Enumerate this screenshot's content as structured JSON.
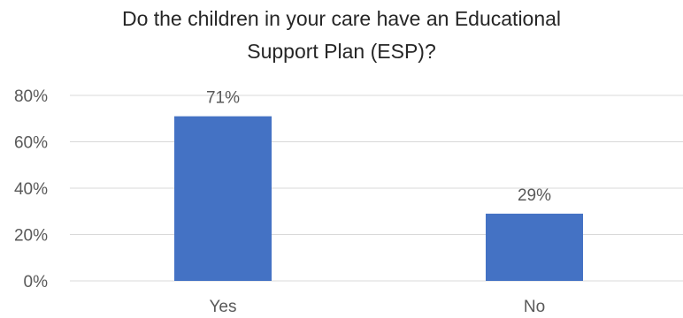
{
  "chart_data": {
    "type": "bar",
    "title_lines": [
      "Do the children in your care have an Educational",
      "Support Plan (ESP)?"
    ],
    "categories": [
      "Yes",
      "No"
    ],
    "values": [
      71,
      29
    ],
    "data_labels": [
      "71%",
      "29%"
    ],
    "ylim": [
      0,
      80
    ],
    "yticks": [
      {
        "value": 0,
        "label": "0%"
      },
      {
        "value": 20,
        "label": "20%"
      },
      {
        "value": 40,
        "label": "40%"
      },
      {
        "value": 60,
        "label": "60%"
      },
      {
        "value": 80,
        "label": "80%"
      }
    ],
    "grid": true,
    "legend": "none",
    "colors": {
      "bar": "#4472c4",
      "grid": "#d9d9d9",
      "text": "#595959",
      "title": "#262626"
    }
  }
}
